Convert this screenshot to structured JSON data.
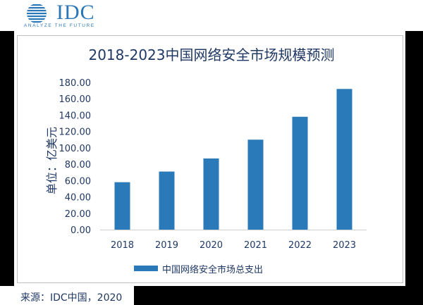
{
  "logo": {
    "name": "IDC",
    "tagline": "ANALYZE THE FUTURE",
    "color": "#2a77b8"
  },
  "chart_data": {
    "type": "bar",
    "title": "2018-2023中国网络安全市场规模预测",
    "ylabel": "单位：亿美元",
    "xlabel": "",
    "categories": [
      "2018",
      "2019",
      "2020",
      "2021",
      "2022",
      "2023"
    ],
    "series": [
      {
        "name": "中国网络安全市场总支出",
        "values": [
          58,
          71,
          87,
          110,
          138,
          172
        ],
        "color": "#2a7ab9"
      }
    ],
    "ylim": [
      0,
      180
    ],
    "yticks": [
      "0.00",
      "20.00",
      "40.00",
      "60.00",
      "80.00",
      "100.00",
      "120.00",
      "140.00",
      "160.00",
      "180.00"
    ],
    "grid": false,
    "legend_position": "bottom"
  },
  "source": "来源：IDC中国，2020"
}
